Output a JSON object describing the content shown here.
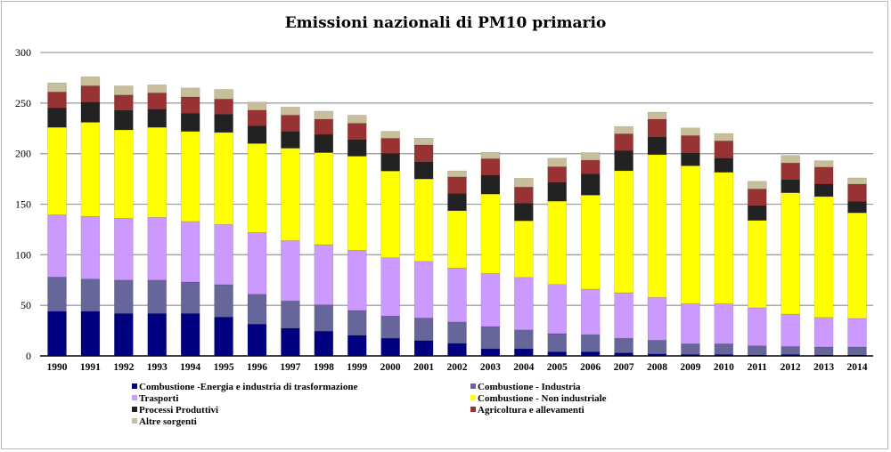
{
  "chart_data": {
    "type": "bar",
    "stacked": true,
    "title": "Emissioni nazionali di PM10 primario",
    "xlabel": "",
    "ylabel": "",
    "ylim": [
      0,
      300
    ],
    "yticks": [
      0,
      50,
      100,
      150,
      200,
      250,
      300
    ],
    "grid": true,
    "legend_position": "bottom",
    "categories": [
      "1990",
      "1991",
      "1992",
      "1993",
      "1994",
      "1995",
      "1996",
      "1997",
      "1998",
      "1999",
      "2000",
      "2001",
      "2002",
      "2003",
      "2004",
      "2005",
      "2006",
      "2007",
      "2008",
      "2009",
      "2010",
      "2011",
      "2012",
      "2013",
      "2014"
    ],
    "series": [
      {
        "name": "Combustione -Energia e industria di trasformazione",
        "color": "#000080",
        "values": [
          44,
          44,
          42,
          42,
          42,
          38.5,
          31.5,
          27.4,
          24.5,
          20.4,
          17.5,
          15.2,
          12.3,
          7,
          7,
          4,
          4,
          3,
          2,
          1.5,
          1.5,
          1,
          1.5,
          1,
          1
        ]
      },
      {
        "name": "Combustione - Industria",
        "color": "#66669a",
        "values": [
          34,
          32,
          33,
          33,
          31,
          32,
          29.5,
          27,
          26,
          24.6,
          22,
          22.2,
          21.3,
          22,
          18.7,
          18,
          17,
          14.5,
          13.5,
          10.5,
          10.5,
          9,
          7.8,
          7.8,
          7.8
        ]
      },
      {
        "name": "Trasporti",
        "color": "#cc99ff",
        "values": [
          61.5,
          62,
          61,
          62,
          60,
          59.5,
          61,
          59.6,
          59.5,
          59.5,
          57.6,
          56,
          53.4,
          52.4,
          51.9,
          48.6,
          45,
          45,
          42.3,
          39.6,
          39.6,
          37.6,
          32,
          29.2,
          28.2
        ]
      },
      {
        "name": "Combustione - Non industriale",
        "color": "#ffff00",
        "values": [
          86.5,
          93,
          87.5,
          89,
          89,
          91,
          88,
          91.4,
          91,
          93,
          85.7,
          81.6,
          56.6,
          78.6,
          56,
          82.4,
          93,
          120.6,
          141.2,
          136.4,
          130,
          86.4,
          120,
          119.6,
          104.5
        ]
      },
      {
        "name": "Processi Produttivi",
        "color": "#222222",
        "values": [
          19,
          20,
          19.5,
          18,
          18,
          18,
          17.5,
          16.6,
          18,
          16.5,
          17.3,
          17,
          16.9,
          18.6,
          17.4,
          18.6,
          21,
          20,
          17.5,
          12.8,
          14,
          14.8,
          13,
          12.2,
          11.1
        ]
      },
      {
        "name": "Agricoltura e allevamenti",
        "color": "#993333",
        "values": [
          16,
          16,
          15,
          16,
          16,
          15,
          15.5,
          16,
          15,
          16,
          15,
          16.6,
          16.5,
          16.4,
          16,
          15.4,
          13.5,
          16.4,
          17.5,
          17,
          17,
          16.2,
          16.5,
          16.9,
          17.2
        ]
      },
      {
        "name": "Altre sorgenti",
        "color": "#c8bf9a",
        "values": [
          9,
          9,
          9,
          8,
          9,
          9.5,
          8,
          8,
          8,
          8,
          7,
          6.7,
          6,
          6.4,
          8.7,
          8.5,
          7.5,
          7.3,
          7,
          7.6,
          7.3,
          7.7,
          7.4,
          6.3,
          6.2
        ]
      }
    ]
  }
}
